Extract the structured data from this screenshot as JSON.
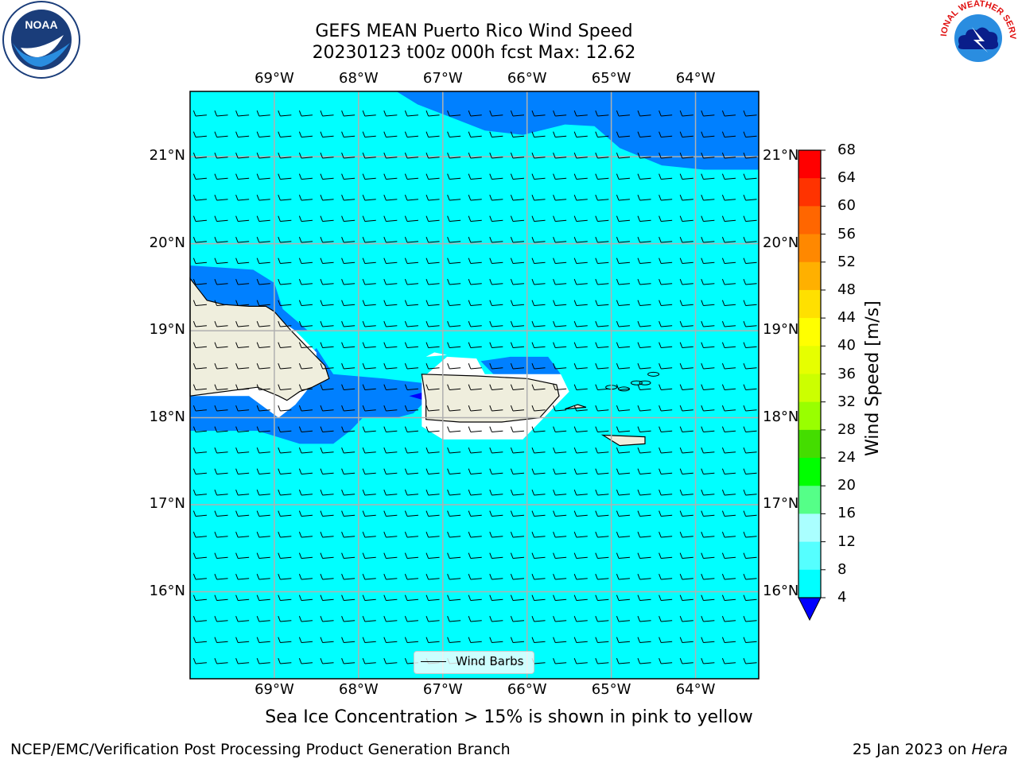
{
  "title_line1": "GEFS MEAN Puerto Rico Wind Speed",
  "title_line2": "20230123 t00z 000h fcst   Max: 12.62",
  "subtitle": "Sea Ice Concentration > 15% is shown in pink to yellow",
  "footer_left": "NCEP/EMC/Verification Post Processing Product Generation Branch",
  "footer_right_date": "25 Jan 2023 on",
  "footer_right_host": "Hera",
  "legend_label": "Wind Barbs",
  "lon_labels": [
    "69°W",
    "68°W",
    "67°W",
    "66°W",
    "65°W",
    "64°W"
  ],
  "lat_labels": [
    "21°N",
    "20°N",
    "19°N",
    "18°N",
    "17°N",
    "16°N"
  ],
  "colorbar": {
    "label": "Wind Speed [m/s]",
    "ticks": [
      "68",
      "64",
      "60",
      "56",
      "52",
      "48",
      "44",
      "40",
      "36",
      "32",
      "28",
      "24",
      "20",
      "16",
      "12",
      "8",
      "4"
    ],
    "colors_top_to_bottom": [
      "#ff0000",
      "#ff3300",
      "#ff6600",
      "#ff8800",
      "#ffb000",
      "#ffe000",
      "#ffff00",
      "#e6ff00",
      "#ccff00",
      "#99ff00",
      "#44dd00",
      "#00ff00",
      "#55ff88",
      "#aaffff",
      "#55ffff",
      "#00ffff",
      "#0080ff"
    ],
    "under_color": "#0000ff"
  },
  "map": {
    "extent": {
      "lon_min": -70.0,
      "lon_max": -63.25,
      "lat_min": 15.0,
      "lat_max": 21.75
    },
    "ocean_color": "#00ffff",
    "low_wind_color": "#0080ff",
    "land_color": "#efeedd",
    "max_wind": 12.62
  },
  "logos": {
    "left": "NOAA",
    "right": "NATIONAL WEATHER SERVICE"
  }
}
